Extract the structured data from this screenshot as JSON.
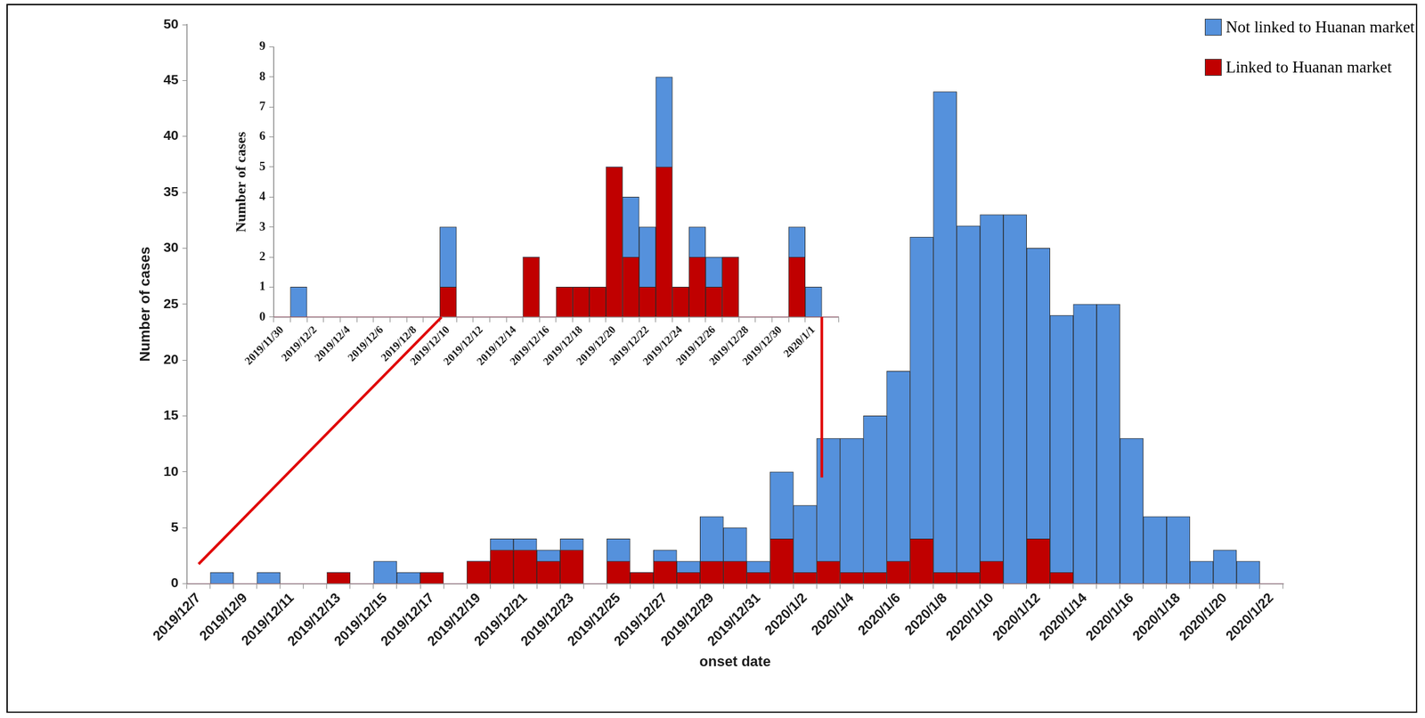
{
  "chart_data": [
    {
      "type": "bar",
      "xlabel": "onset date",
      "ylabel": "Number of cases",
      "categories": [
        "2019/12/7",
        null,
        "2019/12/9",
        null,
        "2019/12/11",
        null,
        "2019/12/13",
        null,
        "2019/12/15",
        null,
        "2019/12/17",
        null,
        "2019/12/19",
        null,
        "2019/12/21",
        null,
        "2019/12/23",
        null,
        "2019/12/25",
        null,
        "2019/12/27",
        null,
        "2019/12/29",
        null,
        "2019/12/31",
        null,
        "2020/1/2",
        null,
        "2020/1/4",
        null,
        "2020/1/6",
        null,
        "2020/1/8",
        null,
        "2020/1/10",
        null,
        "2020/1/12",
        null,
        "2020/1/14",
        null,
        "2020/1/16",
        null,
        "2020/1/18",
        null,
        "2020/1/20",
        null,
        "2020/1/22"
      ],
      "series": [
        {
          "name": "Not linked to Huanan market",
          "color": "#5591dc",
          "values": [
            0,
            1,
            0,
            1,
            0,
            0,
            0,
            0,
            2,
            1,
            0,
            0,
            0,
            1,
            1,
            1,
            1,
            0,
            2,
            0,
            1,
            1,
            4,
            3,
            1,
            6,
            6,
            11,
            12,
            14,
            17,
            27,
            43,
            31,
            31,
            33,
            26,
            23,
            25,
            25,
            13,
            6,
            6,
            2,
            3,
            2,
            0
          ]
        },
        {
          "name": "Linked to Huanan market",
          "color": "#c00000",
          "values": [
            0,
            0,
            0,
            0,
            0,
            0,
            1,
            0,
            0,
            0,
            1,
            0,
            2,
            3,
            3,
            2,
            3,
            0,
            2,
            1,
            2,
            1,
            2,
            2,
            1,
            4,
            1,
            2,
            1,
            1,
            2,
            4,
            1,
            1,
            2,
            0,
            4,
            1,
            0,
            0,
            0,
            0,
            0,
            0,
            0,
            0,
            0
          ]
        }
      ],
      "stacked": true,
      "ylim": [
        0,
        50
      ],
      "yticks": [
        0,
        5,
        10,
        15,
        20,
        25,
        30,
        35,
        40,
        45,
        50
      ],
      "grid": false,
      "legend": "upper right"
    },
    {
      "type": "bar",
      "ylabel": "Number of cases",
      "categories": [
        "2019/11/30",
        null,
        "2019/12/2",
        null,
        "2019/12/4",
        null,
        "2019/12/6",
        null,
        "2019/12/8",
        null,
        "2019/12/10",
        null,
        "2019/12/12",
        null,
        "2019/12/14",
        null,
        "2019/12/16",
        null,
        "2019/12/18",
        null,
        "2019/12/20",
        null,
        "2019/12/22",
        null,
        "2019/12/24",
        null,
        "2019/12/26",
        null,
        "2019/12/28",
        null,
        "2019/12/30",
        null,
        "2020/1/1",
        null
      ],
      "series": [
        {
          "name": "Not linked to Huanan market",
          "color": "#5591dc",
          "values": [
            0,
            1,
            0,
            0,
            0,
            0,
            0,
            0,
            0,
            0,
            2,
            0,
            0,
            0,
            0,
            0,
            0,
            0,
            0,
            0,
            0,
            2,
            2,
            3,
            0,
            1,
            1,
            0,
            0,
            0,
            0,
            1,
            1,
            0
          ]
        },
        {
          "name": "Linked to Huanan market",
          "color": "#c00000",
          "values": [
            0,
            0,
            0,
            0,
            0,
            0,
            0,
            0,
            0,
            0,
            1,
            0,
            0,
            0,
            0,
            2,
            0,
            1,
            1,
            1,
            5,
            2,
            1,
            5,
            1,
            2,
            1,
            2,
            0,
            0,
            0,
            2,
            0,
            0
          ]
        }
      ],
      "stacked": true,
      "ylim": [
        0,
        9
      ],
      "yticks": [
        0,
        1,
        2,
        3,
        4,
        5,
        6,
        7,
        8,
        9
      ],
      "grid": false
    }
  ]
}
